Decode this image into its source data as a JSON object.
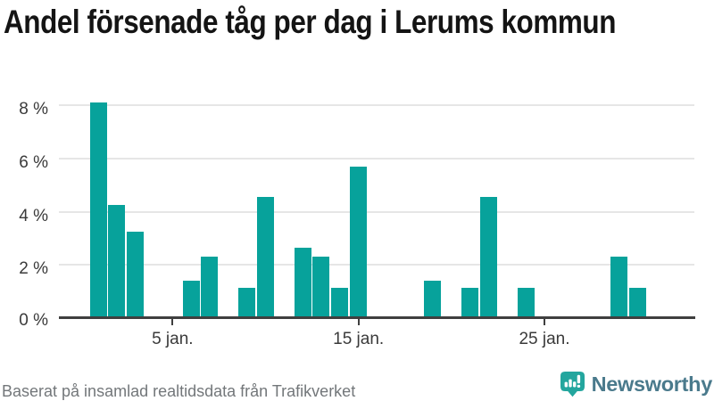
{
  "chart_data": {
    "type": "bar",
    "title": "Andel försenade tåg per dag i Lerums kommun",
    "xlabel": "",
    "ylabel": "",
    "unit": "%",
    "month": "jan.",
    "days": [
      1,
      2,
      3,
      4,
      5,
      6,
      7,
      8,
      9,
      10,
      11,
      12,
      13,
      14,
      15,
      16,
      17,
      18,
      19,
      20,
      21,
      22,
      23,
      24,
      25,
      26,
      27,
      28,
      29,
      30,
      31
    ],
    "values": [
      8.1,
      4.25,
      3.25,
      0,
      0,
      1.4,
      2.3,
      0,
      1.15,
      4.55,
      0,
      2.65,
      2.3,
      1.15,
      5.7,
      0,
      0,
      0,
      1.4,
      0,
      1.15,
      4.55,
      0,
      1.15,
      0,
      0,
      0,
      0,
      2.3,
      1.15,
      0
    ],
    "y_axis": {
      "tick_values": [
        0,
        2,
        4,
        6,
        8
      ],
      "tick_labels": [
        "0 %",
        "2 %",
        "4 %",
        "6 %",
        "8 %"
      ],
      "ylim": [
        0,
        8.6
      ],
      "grid": "horizontal"
    },
    "x_axis": {
      "tick_days": [
        5,
        15,
        25
      ],
      "tick_labels": [
        "5 jan.",
        "15 jan.",
        "25 jan."
      ]
    },
    "legend": "none",
    "bar_color": "#07a29b"
  },
  "footer": {
    "source": "Baserat på insamlad realtidsdata från Trafikverket",
    "brand": "Newsworthy"
  },
  "colors": {
    "bar": "#07a29b",
    "grid": "#e6e6e6",
    "axis": "#3f3f3f",
    "tick_text": "#3a3a3a",
    "title_text": "#141414",
    "source_text": "#73777a",
    "brand_text": "#4a7a8c",
    "brand_icon": "#23a69e"
  }
}
